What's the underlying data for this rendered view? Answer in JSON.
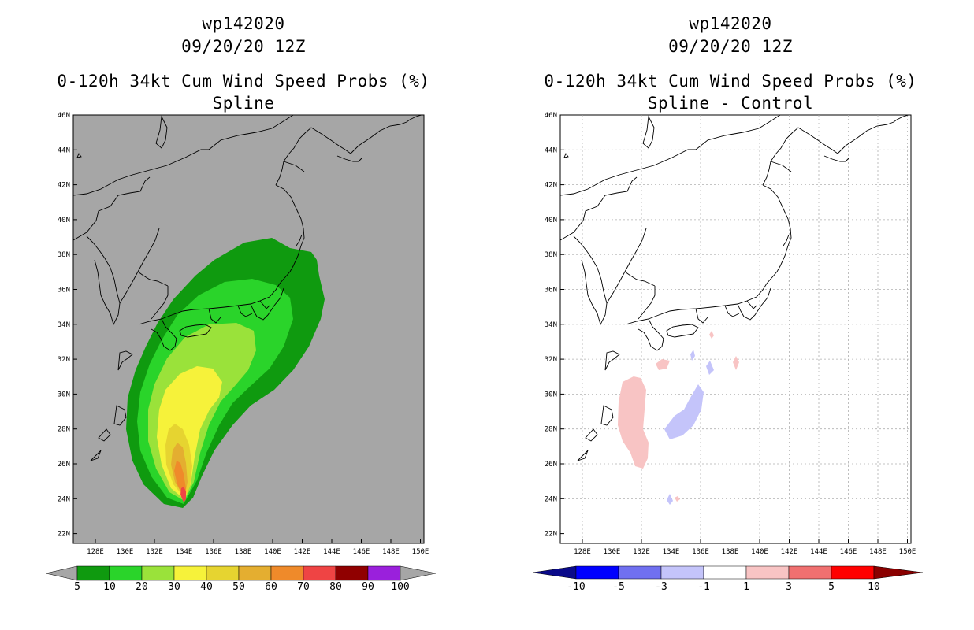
{
  "left": {
    "storm_id": "wp142020",
    "datetime": "09/20/20 12Z",
    "product": "0-120h 34kt Cum Wind Speed Probs (%)",
    "subtitle": "Spline",
    "background_color": "#a6a6a6",
    "colorbar": {
      "labels": [
        "5",
        "10",
        "20",
        "30",
        "40",
        "50",
        "60",
        "70",
        "80",
        "90",
        "100"
      ],
      "colors": [
        "#0f9a0f",
        "#2ad42a",
        "#9ae23a",
        "#f6f23a",
        "#e6d430",
        "#e4ae30",
        "#ef8a2a",
        "#ef4444",
        "#900000",
        "#9a20dc"
      ],
      "end_color": "#a6a6a6"
    }
  },
  "right": {
    "storm_id": "wp142020",
    "datetime": "09/20/20 12Z",
    "product": "0-120h 34kt Cum Wind Speed Probs (%)",
    "subtitle": "Spline - Control",
    "background_color": "#ffffff",
    "colorbar": {
      "labels": [
        "-10",
        "-5",
        "-3",
        "-1",
        "1",
        "3",
        "5",
        "10"
      ],
      "colors": [
        "#0000ff",
        "#7070f0",
        "#c4c4fa",
        "#ffffff",
        "#f8c4c4",
        "#f07070",
        "#ff0000"
      ],
      "end_low": "#0a0a8a",
      "end_high": "#8a0000"
    }
  },
  "axes": {
    "lat_labels": [
      "46N",
      "44N",
      "42N",
      "40N",
      "38N",
      "36N",
      "34N",
      "32N",
      "30N",
      "28N",
      "26N",
      "24N",
      "22N"
    ],
    "lon_labels": [
      "128E",
      "130E",
      "132E",
      "134E",
      "136E",
      "138E",
      "140E",
      "142E",
      "144E",
      "146E",
      "148E",
      "150E"
    ]
  }
}
